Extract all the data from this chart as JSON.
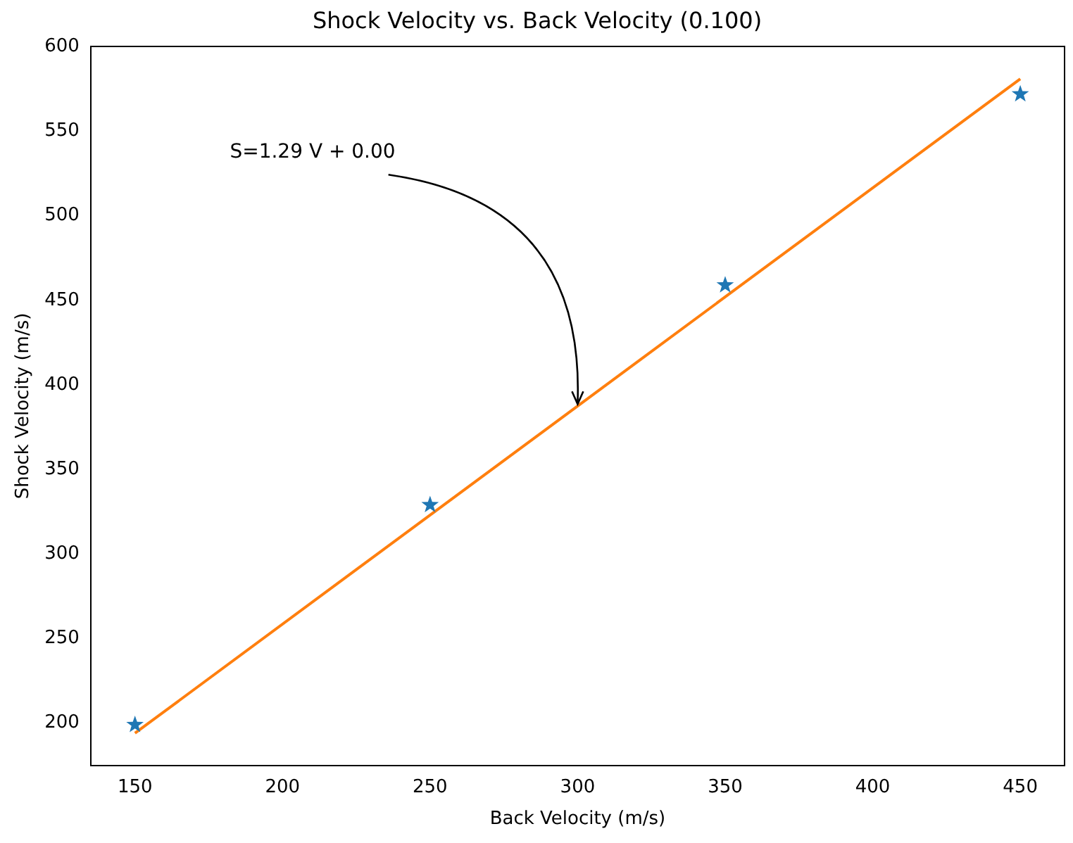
{
  "chart_data": {
    "type": "scatter",
    "title": "Shock Velocity vs. Back Velocity (0.100)",
    "xlabel": "Back Velocity (m/s)",
    "ylabel": "Shock Velocity (m/s)",
    "x": [
      150,
      250,
      350,
      450
    ],
    "series": [
      {
        "type": "scatter",
        "color": "#1f77b4",
        "marker": "star",
        "values": [
          199,
          329,
          459,
          572
        ]
      },
      {
        "type": "line",
        "color": "#ff7f0e",
        "x": [
          150,
          450
        ],
        "values": [
          194,
          581
        ],
        "marker": "none"
      }
    ],
    "annotations": [
      {
        "text": "S=1.29 V + 0.00",
        "x": 300,
        "y": 387
      }
    ],
    "xlim": [
      135,
      465
    ],
    "xticks": [
      150,
      200,
      250,
      300,
      350,
      400,
      450
    ],
    "ylim": [
      175,
      600
    ],
    "yticks": [
      200,
      250,
      300,
      350,
      400,
      450,
      500,
      550,
      600
    ],
    "grid": false,
    "legend": false
  }
}
